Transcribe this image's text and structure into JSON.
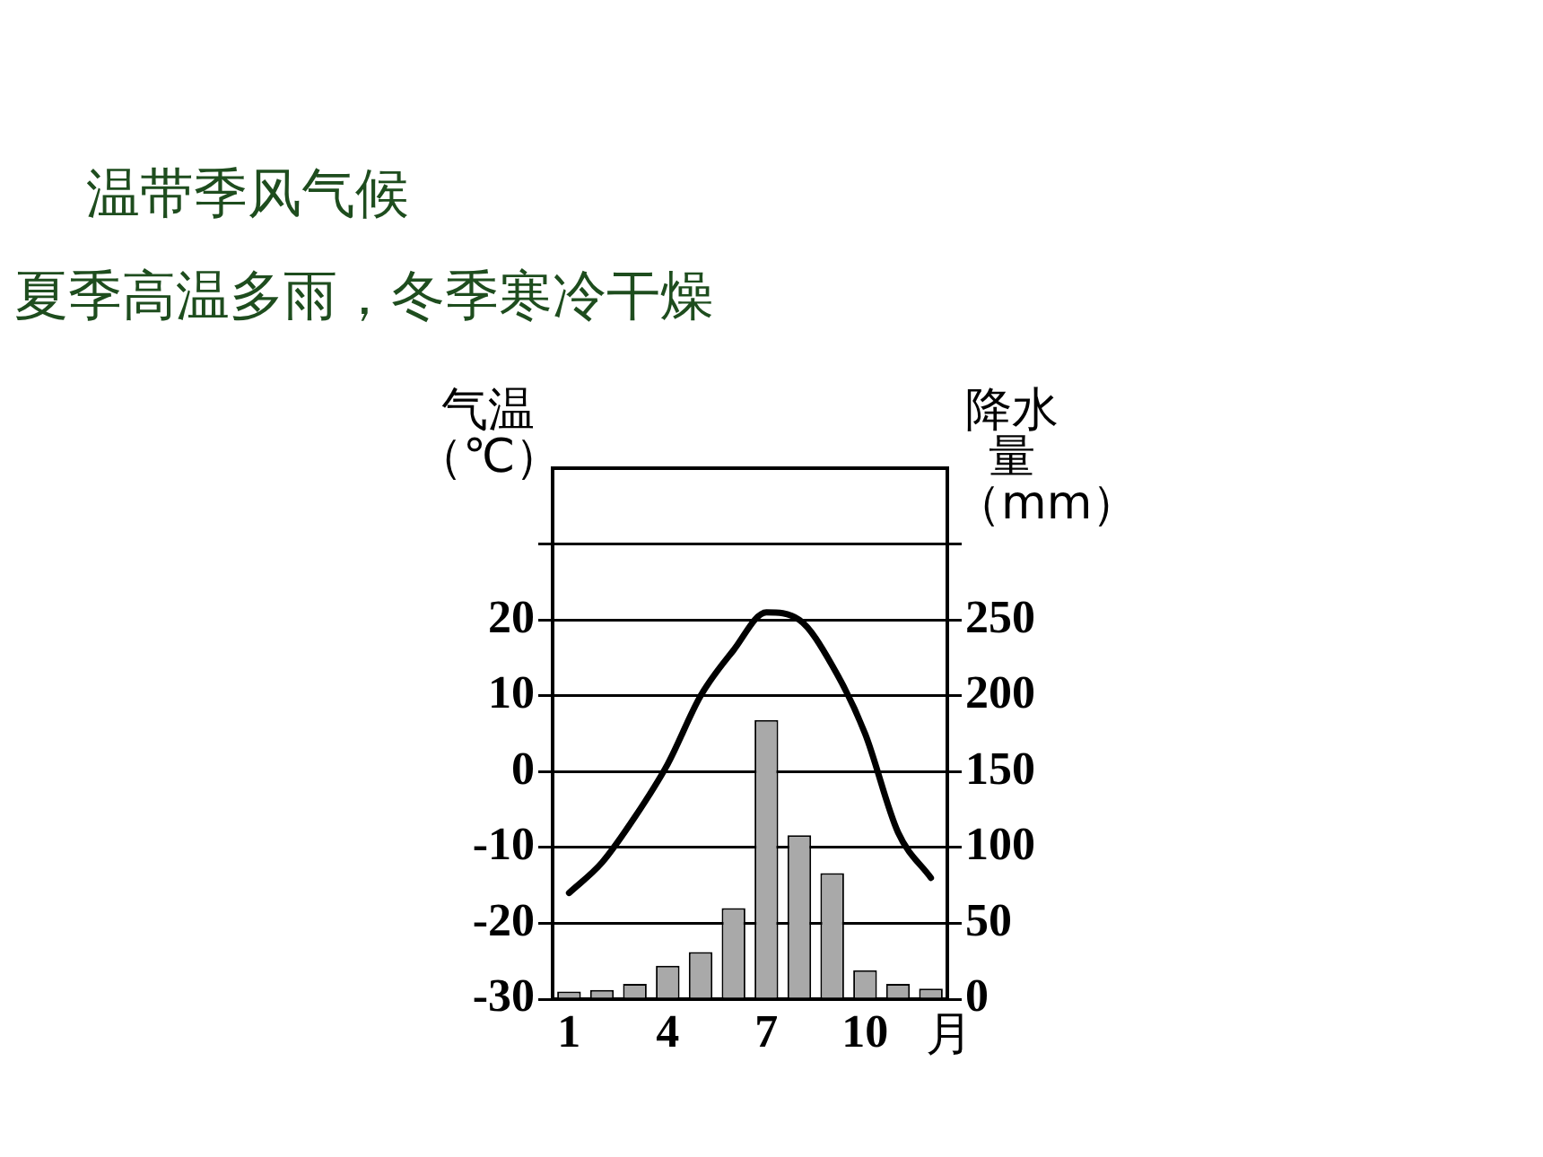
{
  "chart_data": {
    "type": "bar",
    "title": "温带季风气候",
    "subtitle": "夏季高温多雨，冬季寒冷干燥",
    "xlabel": "月",
    "ylabel": "气温（℃）",
    "y2label": "降水量（mm）",
    "categories": [
      "1",
      null,
      null,
      "4",
      null,
      null,
      "7",
      null,
      null,
      "10",
      null,
      null
    ],
    "series": [
      {
        "axis": "y2",
        "color": "#a9a9a9",
        "values": [
          5,
          6,
          10,
          22,
          31,
          60,
          184,
          108,
          83,
          19,
          10,
          7
        ]
      },
      {
        "type": "line",
        "color": "#000000",
        "values": [
          -16,
          -12,
          -6,
          1,
          10,
          16,
          21,
          20,
          14,
          5,
          -8,
          -14
        ]
      }
    ],
    "ylim": [
      -30,
      40
    ],
    "yticks": [
      -30,
      -20,
      -10,
      0,
      10,
      20,
      {
        "value": 30,
        "label": null
      }
    ],
    "y2lim": [
      0,
      350
    ],
    "y2ticks": [
      0,
      50,
      100,
      150,
      200,
      250,
      {
        "value": 300,
        "label": null
      }
    ],
    "grid": "y",
    "legend": false,
    "marker": "none"
  }
}
